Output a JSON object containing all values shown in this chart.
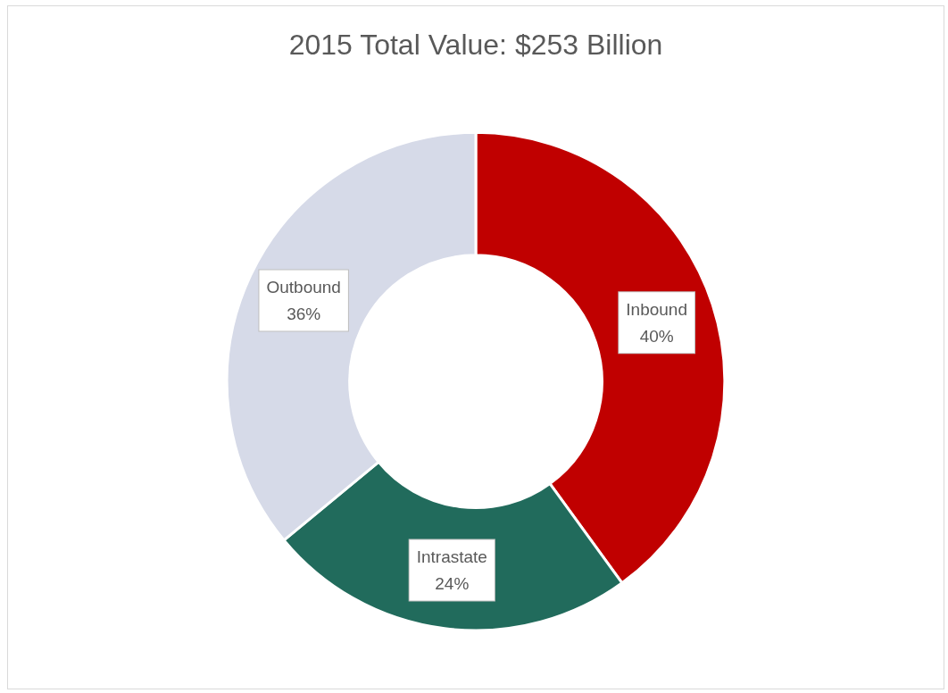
{
  "chart_data": {
    "type": "donut",
    "title": "2015 Total Value: $253 Billion",
    "categories": [
      "Inbound",
      "Intrastate",
      "Outbound"
    ],
    "values": [
      40,
      24,
      36
    ],
    "colors": [
      "#c00000",
      "#216b5c",
      "#d6dae8"
    ],
    "value_labels": [
      "40%",
      "24%",
      "36%"
    ],
    "legend": false
  }
}
